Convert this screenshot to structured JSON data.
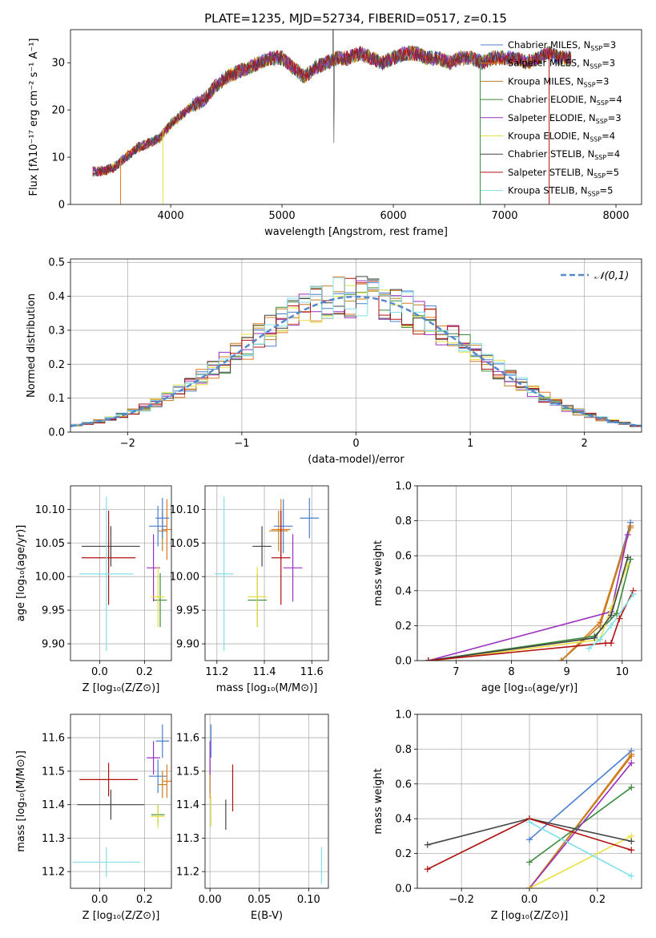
{
  "title": "PLATE=1235, MJD=52734, FIBERID=0517, z=0.15",
  "models": [
    {
      "name": "Chabrier MILES, N$_{SSP}$=3",
      "label": "Chabrier MILES, N",
      "sub": "SSP",
      "n": "=3",
      "color": "#4a7fd0"
    },
    {
      "name": "Salpeter MILES, N$_{SSP}$=3",
      "label": "Salpeter MILES, N",
      "sub": "SSP",
      "n": "=3",
      "color": "#e07a20"
    },
    {
      "name": "Kroupa MILES, N$_{SSP}$=3",
      "label": "Kroupa MILES, N",
      "sub": "SSP",
      "n": "=3",
      "color": "#c08020"
    },
    {
      "name": "Chabrier ELODIE, N$_{SSP}$=4",
      "label": "Chabrier ELODIE, N",
      "sub": "SSP",
      "n": "=4",
      "color": "#3a8a3a"
    },
    {
      "name": "Salpeter ELODIE, N$_{SSP}$=3",
      "label": "Salpeter ELODIE, N",
      "sub": "SSP",
      "n": "=3",
      "color": "#9b30c0"
    },
    {
      "name": "Kroupa ELODIE, N$_{SSP}$=4",
      "label": "Kroupa ELODIE, N",
      "sub": "SSP",
      "n": "=4",
      "color": "#e8e040"
    },
    {
      "name": "Chabrier STELIB, N$_{SSP}$=4",
      "label": "Chabrier STELIB, N",
      "sub": "SSP",
      "n": "=4",
      "color": "#444444"
    },
    {
      "name": "Salpeter STELIB, N$_{SSP}$=5",
      "label": "Salpeter STELIB, N",
      "sub": "SSP",
      "n": "=5",
      "color": "#b01010"
    },
    {
      "name": "Kroupa STELIB, N$_{SSP}$=5",
      "label": "Kroupa STELIB, N",
      "sub": "SSP",
      "n": "=5",
      "color": "#80e0e8"
    }
  ],
  "chart_data": [
    {
      "id": "spectrum",
      "type": "line",
      "xlabel": "wavelength [Angstrom, rest frame]",
      "ylabel": "Flux [fλ10⁻¹⁷ erg cm⁻² s⁻¹ A⁻¹]",
      "xlim": [
        3100,
        8230
      ],
      "ylim": [
        0,
        37
      ],
      "xticks": [
        4000,
        5000,
        6000,
        7000,
        8000
      ],
      "yticks": [
        0,
        10,
        20,
        30
      ],
      "x": [
        3300,
        3400,
        3500,
        3600,
        3700,
        3800,
        3900,
        4000,
        4100,
        4200,
        4300,
        4400,
        4500,
        4600,
        4700,
        4800,
        4900,
        5000,
        5100,
        5200,
        5300,
        5400,
        5500,
        5600,
        5700,
        5800,
        5900,
        6000,
        6100,
        6200,
        6300,
        6400,
        6500,
        6600,
        6700,
        6800,
        6900,
        7000,
        7100,
        7200,
        7300,
        7400,
        7500,
        7600
      ],
      "flux": [
        7,
        7,
        8,
        10,
        12,
        13,
        14,
        17,
        19,
        21,
        22,
        25,
        27,
        28,
        29,
        30,
        31,
        31,
        29,
        27,
        29,
        30,
        31,
        31,
        32,
        31,
        30,
        31,
        32,
        32,
        31,
        31,
        30,
        31,
        31,
        30,
        31,
        31,
        31,
        30,
        31,
        32,
        31,
        31
      ],
      "grid": false,
      "legend": "top-right"
    },
    {
      "id": "residuals",
      "type": "histogram",
      "xlabel": "(data-model)/error",
      "ylabel": "Normed distribution",
      "xlim": [
        -2.5,
        2.5
      ],
      "ylim": [
        0,
        0.51
      ],
      "xticks": [
        -2,
        -1,
        0,
        1,
        2
      ],
      "yticks": [
        0.0,
        0.1,
        0.2,
        0.3,
        0.4,
        0.5
      ],
      "reference": {
        "name": "𝒩(0,1)",
        "style": "dashed",
        "color": "#5588cc"
      },
      "bin_width": 0.1,
      "grid": true,
      "legend": "top-right"
    },
    {
      "id": "age_vs_Z",
      "type": "scatter",
      "xlabel": "Z [log₁₀(Z/Z⊙)]",
      "ylabel": "age  [log₁₀(age/yr)]",
      "xlim": [
        -0.13,
        0.32
      ],
      "ylim": [
        9.875,
        10.135
      ],
      "xticks": [
        0.0,
        0.2
      ],
      "yticks": [
        9.9,
        9.95,
        10.0,
        10.05,
        10.1
      ],
      "points": [
        {
          "series": 0,
          "x": 0.26,
          "y": 10.075,
          "xerr": 0.04,
          "yerr": 0.03
        },
        {
          "series": 1,
          "x": 0.3,
          "y": 10.07,
          "xerr": 0.02,
          "yerr": 0.045
        },
        {
          "series": 2,
          "x": 0.28,
          "y": 10.068,
          "xerr": 0.02,
          "yerr": 0.03
        },
        {
          "series": 3,
          "x": 0.27,
          "y": 9.965,
          "xerr": 0.03,
          "yerr": 0.04
        },
        {
          "series": 4,
          "x": 0.24,
          "y": 10.013,
          "xerr": 0.03,
          "yerr": 0.05
        },
        {
          "series": 5,
          "x": 0.26,
          "y": 9.97,
          "xerr": 0.03,
          "yerr": 0.045
        },
        {
          "series": 6,
          "x": 0.05,
          "y": 10.045,
          "xerr": 0.13,
          "yerr": 0.03
        },
        {
          "series": 7,
          "x": 0.04,
          "y": 10.028,
          "xerr": 0.12,
          "yerr": 0.07
        },
        {
          "series": 8,
          "x": 0.03,
          "y": 10.004,
          "xerr": 0.12,
          "yerr": 0.115
        },
        {
          "series": 0,
          "x": 0.28,
          "y": 10.087,
          "xerr": 0.03,
          "yerr": 0.03
        }
      ],
      "grid": true
    },
    {
      "id": "age_vs_mass",
      "type": "scatter",
      "xlabel": "mass [log₁₀(M/M⊙)]",
      "ylabel": "",
      "xlim": [
        11.15,
        11.67
      ],
      "ylim": [
        9.875,
        10.135
      ],
      "xticks": [
        11.2,
        11.4,
        11.6
      ],
      "yticks": [
        9.9,
        9.95,
        10.0,
        10.05,
        10.1
      ],
      "points": [
        {
          "series": 0,
          "x": 11.48,
          "y": 10.075,
          "xerr": 0.04,
          "yerr": 0.04
        },
        {
          "series": 1,
          "x": 11.47,
          "y": 10.07,
          "xerr": 0.04,
          "yerr": 0.045
        },
        {
          "series": 2,
          "x": 11.46,
          "y": 10.068,
          "xerr": 0.04,
          "yerr": 0.03
        },
        {
          "series": 3,
          "x": 11.37,
          "y": 9.965,
          "xerr": 0.04,
          "yerr": 0.04
        },
        {
          "series": 4,
          "x": 11.52,
          "y": 10.013,
          "xerr": 0.04,
          "yerr": 0.05
        },
        {
          "series": 5,
          "x": 11.37,
          "y": 9.97,
          "xerr": 0.04,
          "yerr": 0.045
        },
        {
          "series": 6,
          "x": 11.39,
          "y": 10.045,
          "xerr": 0.04,
          "yerr": 0.03
        },
        {
          "series": 7,
          "x": 11.47,
          "y": 10.028,
          "xerr": 0.04,
          "yerr": 0.07
        },
        {
          "series": 8,
          "x": 11.23,
          "y": 10.004,
          "xerr": 0.04,
          "yerr": 0.115
        },
        {
          "series": 0,
          "x": 11.59,
          "y": 10.087,
          "xerr": 0.04,
          "yerr": 0.03
        }
      ],
      "grid": true
    },
    {
      "id": "weight_vs_age",
      "type": "line",
      "xlabel": "age  [log₁₀(age/yr)]",
      "ylabel": "mass weight",
      "xlim": [
        6.3,
        10.35
      ],
      "ylim": [
        0,
        1.0
      ],
      "xticks": [
        7,
        8,
        9,
        10
      ],
      "yticks": [
        0.0,
        0.2,
        0.4,
        0.6,
        0.8,
        1.0
      ],
      "series": [
        {
          "series": 0,
          "x": [
            9.6,
            10.15
          ],
          "y": [
            0.2,
            0.79
          ]
        },
        {
          "series": 1,
          "x": [
            8.9,
            9.6,
            10.15
          ],
          "y": [
            0.0,
            0.22,
            0.77
          ]
        },
        {
          "series": 2,
          "x": [
            8.9,
            9.6,
            10.15
          ],
          "y": [
            0.0,
            0.2,
            0.76
          ]
        },
        {
          "series": 3,
          "x": [
            6.5,
            9.5,
            9.9,
            10.15
          ],
          "y": [
            0.0,
            0.14,
            0.27,
            0.58
          ]
        },
        {
          "series": 4,
          "x": [
            6.5,
            9.8,
            10.1
          ],
          "y": [
            0.0,
            0.28,
            0.72
          ]
        },
        {
          "series": 5,
          "x": [
            6.6,
            9.6,
            9.8,
            10.1
          ],
          "y": [
            0.0,
            0.12,
            0.3,
            0.55
          ]
        },
        {
          "series": 6,
          "x": [
            6.5,
            9.5,
            9.8,
            10.1
          ],
          "y": [
            0.0,
            0.13,
            0.26,
            0.59
          ]
        },
        {
          "series": 7,
          "x": [
            6.5,
            9.7,
            9.8,
            9.95,
            10.2
          ],
          "y": [
            0.0,
            0.1,
            0.1,
            0.24,
            0.4
          ]
        },
        {
          "series": 8,
          "x": [
            9.4,
            9.6,
            9.8,
            10.2
          ],
          "y": [
            0.07,
            0.12,
            0.2,
            0.38
          ]
        }
      ],
      "grid": true
    },
    {
      "id": "mass_vs_Z",
      "type": "scatter",
      "xlabel": "Z [log₁₀(Z/Z⊙)]",
      "ylabel": "mass [log₁₀(M/M⊙)]",
      "xlim": [
        -0.13,
        0.32
      ],
      "ylim": [
        11.15,
        11.67
      ],
      "xticks": [
        0.0,
        0.2
      ],
      "yticks": [
        11.2,
        11.3,
        11.4,
        11.5,
        11.6
      ],
      "points": [
        {
          "series": 0,
          "x": 0.26,
          "y": 11.485,
          "xerr": 0.04,
          "yerr": 0.05
        },
        {
          "series": 1,
          "x": 0.3,
          "y": 11.47,
          "xerr": 0.02,
          "yerr": 0.05
        },
        {
          "series": 2,
          "x": 0.28,
          "y": 11.46,
          "xerr": 0.02,
          "yerr": 0.04
        },
        {
          "series": 3,
          "x": 0.26,
          "y": 11.37,
          "xerr": 0.03,
          "yerr": 0.03
        },
        {
          "series": 4,
          "x": 0.24,
          "y": 11.54,
          "xerr": 0.03,
          "yerr": 0.05
        },
        {
          "series": 5,
          "x": 0.26,
          "y": 11.365,
          "xerr": 0.03,
          "yerr": 0.035
        },
        {
          "series": 6,
          "x": 0.05,
          "y": 11.4,
          "xerr": 0.15,
          "yerr": 0.045
        },
        {
          "series": 7,
          "x": 0.04,
          "y": 11.475,
          "xerr": 0.13,
          "yerr": 0.05
        },
        {
          "series": 8,
          "x": 0.03,
          "y": 11.228,
          "xerr": 0.15,
          "yerr": 0.045
        },
        {
          "series": 0,
          "x": 0.28,
          "y": 11.59,
          "xerr": 0.03,
          "yerr": 0.05
        }
      ],
      "grid": true
    },
    {
      "id": "mass_vs_ebv",
      "type": "scatter",
      "xlabel": "E(B-V)",
      "ylabel": "",
      "xlim": [
        -0.005,
        0.12
      ],
      "ylim": [
        11.15,
        11.67
      ],
      "xticks": [
        0.0,
        0.05,
        0.1
      ],
      "yticks": [
        11.2,
        11.3,
        11.4,
        11.5,
        11.6
      ],
      "points": [
        {
          "series": 0,
          "x": 0.0,
          "y": 11.485,
          "yerr": 0.05
        },
        {
          "series": 1,
          "x": 0.0,
          "y": 11.47,
          "yerr": 0.05
        },
        {
          "series": 4,
          "x": 0.0,
          "y": 11.54,
          "yerr": 0.05
        },
        {
          "series": 0,
          "x": 0.001,
          "y": 11.59,
          "yerr": 0.05
        },
        {
          "series": 5,
          "x": 0.001,
          "y": 11.38,
          "yerr": 0.045
        },
        {
          "series": 6,
          "x": 0.016,
          "y": 11.37,
          "yerr": 0.045
        },
        {
          "series": 7,
          "x": 0.023,
          "y": 11.45,
          "yerr": 0.07
        },
        {
          "series": 8,
          "x": 0.113,
          "y": 11.218,
          "yerr": 0.055
        }
      ],
      "grid": true
    },
    {
      "id": "weight_vs_Z",
      "type": "line",
      "xlabel": "Z [log₁₀(Z/Z⊙)]",
      "ylabel": "mass weight",
      "xlim": [
        -0.33,
        0.33
      ],
      "ylim": [
        0,
        1.0
      ],
      "xticks": [
        -0.2,
        0.0,
        0.2
      ],
      "yticks": [
        0.0,
        0.2,
        0.4,
        0.6,
        0.8,
        1.0
      ],
      "series": [
        {
          "series": 0,
          "x": [
            0.0,
            0.3
          ],
          "y": [
            0.28,
            0.79
          ]
        },
        {
          "series": 1,
          "x": [
            0.0,
            0.3
          ],
          "y": [
            0.0,
            0.77
          ]
        },
        {
          "series": 2,
          "x": [
            0.0,
            0.3
          ],
          "y": [
            0.0,
            0.76
          ]
        },
        {
          "series": 3,
          "x": [
            0.0,
            0.3
          ],
          "y": [
            0.15,
            0.58
          ]
        },
        {
          "series": 4,
          "x": [
            0.0,
            0.3
          ],
          "y": [
            0.0,
            0.72
          ]
        },
        {
          "series": 5,
          "x": [
            0.0,
            0.3
          ],
          "y": [
            0.0,
            0.3
          ]
        },
        {
          "series": 6,
          "x": [
            -0.3,
            0.0,
            0.3
          ],
          "y": [
            0.25,
            0.4,
            0.27
          ]
        },
        {
          "series": 7,
          "x": [
            -0.3,
            0.0,
            0.3
          ],
          "y": [
            0.11,
            0.4,
            0.22
          ]
        },
        {
          "series": 8,
          "x": [
            0.0,
            0.3
          ],
          "y": [
            0.38,
            0.07
          ]
        }
      ],
      "grid": true
    }
  ]
}
